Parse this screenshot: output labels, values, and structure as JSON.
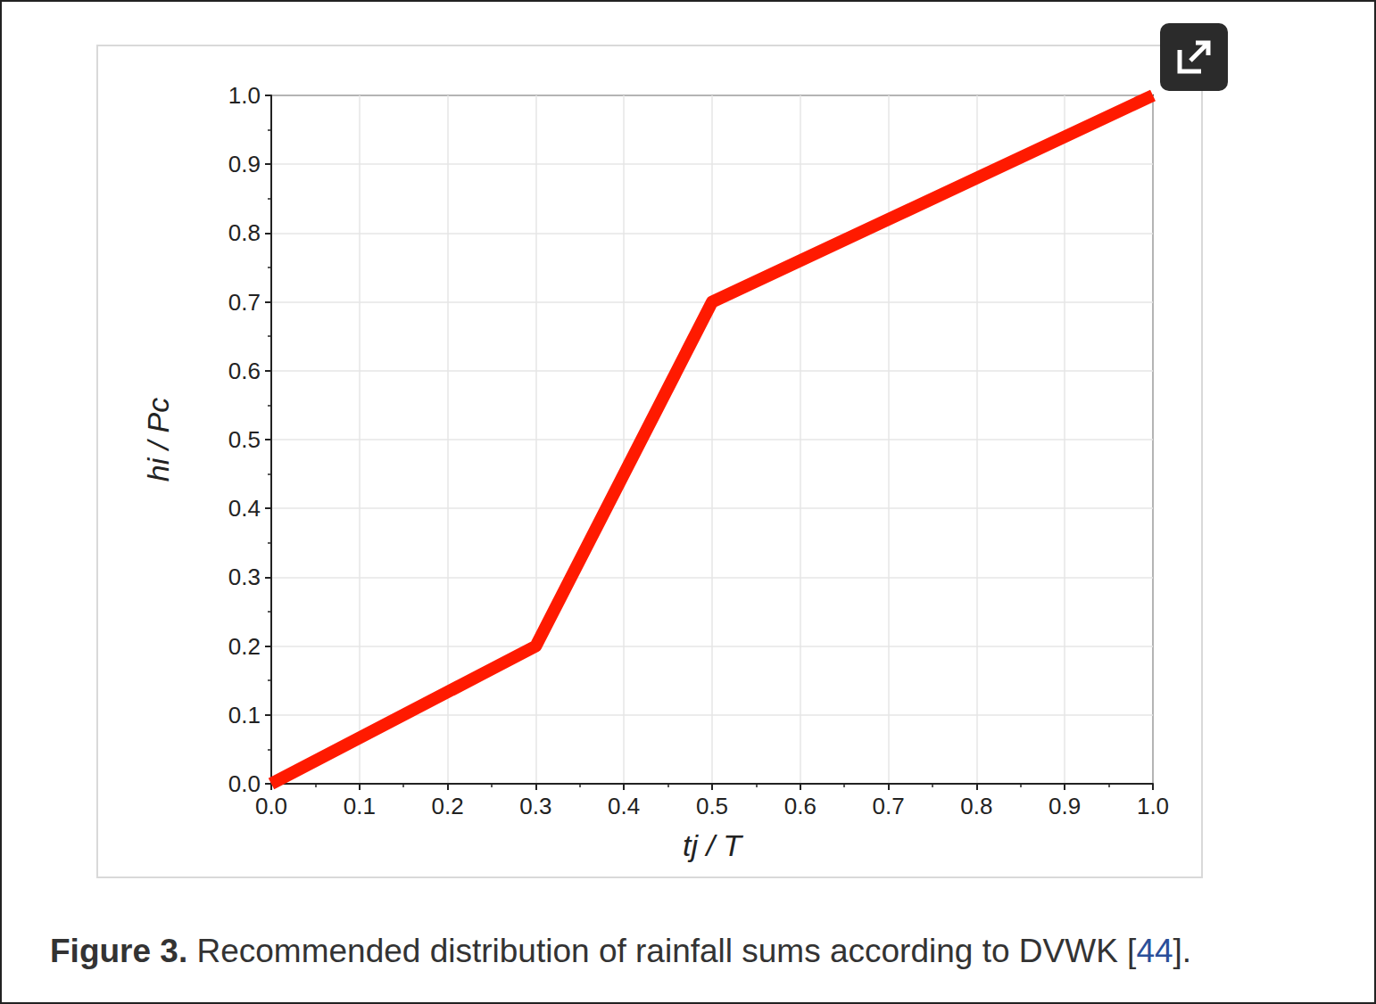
{
  "chart_data": {
    "type": "line",
    "title": "Figure 3. Recommended distribution of rainfall sums according to DVWK [44].",
    "x_label": "tj / T",
    "y_label": "hi / Pc",
    "x": [
      0,
      0.3,
      0.5,
      1.0
    ],
    "values": [
      0,
      0.2,
      0.7,
      1.0
    ],
    "color": "#ff1a00",
    "xlim": [
      0,
      1.0
    ],
    "ylim": [
      0,
      1.0
    ],
    "xticks": [
      {
        "value": 0,
        "label": "0.0"
      },
      0.1,
      0.2,
      0.3,
      0.4,
      0.5,
      0.6,
      0.7,
      0.8,
      0.9,
      {
        "value": 1,
        "label": "1.0"
      }
    ],
    "yticks": [
      {
        "value": 0,
        "label": "0.0"
      },
      0.1,
      0.2,
      0.3,
      0.4,
      0.5,
      0.6,
      0.7,
      0.8,
      0.9,
      {
        "value": 1,
        "label": "1.0"
      }
    ],
    "grid": true
  }
}
